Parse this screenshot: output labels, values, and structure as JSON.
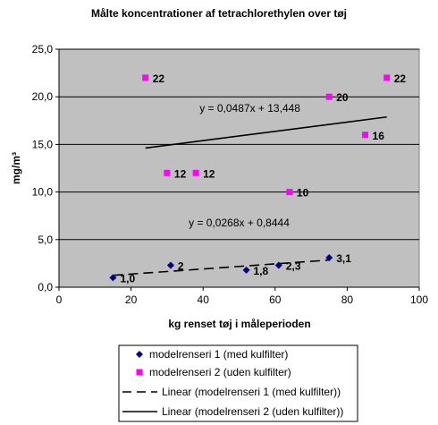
{
  "chart_data": {
    "type": "scatter",
    "title": "Målte koncentrationer af tetrachlorethylen over tøj",
    "xlabel": "kg renset tøj i måleperioden",
    "ylabel": "mg/m³",
    "xlim": [
      0,
      100
    ],
    "ylim": [
      0,
      25
    ],
    "x_ticks": [
      "0",
      "20",
      "40",
      "60",
      "80",
      "100"
    ],
    "y_ticks": [
      "0,0",
      "5,0",
      "10,0",
      "15,0",
      "20,0",
      "25,0"
    ],
    "grid": "horizontal",
    "background_color": "#c0c0c0",
    "series": [
      {
        "name": "modelrenseri 1 (med kulfilter)",
        "marker": "diamond",
        "color": "#000080",
        "points": [
          {
            "x": 15,
            "y": 1.0,
            "label": "1,0"
          },
          {
            "x": 31,
            "y": 2.3,
            "label": "2"
          },
          {
            "x": 52,
            "y": 1.8,
            "label": "1,8"
          },
          {
            "x": 61,
            "y": 2.3,
            "label": "2,3"
          },
          {
            "x": 75,
            "y": 3.1,
            "label": "3,1"
          }
        ]
      },
      {
        "name": "modelrenseri 2 (uden kulfilter)",
        "marker": "square",
        "color": "#ff00ff",
        "points": [
          {
            "x": 24,
            "y": 22,
            "label": "22"
          },
          {
            "x": 30,
            "y": 12,
            "label": "12"
          },
          {
            "x": 38,
            "y": 12,
            "label": "12"
          },
          {
            "x": 64,
            "y": 10,
            "label": "10"
          },
          {
            "x": 75,
            "y": 20,
            "label": "20"
          },
          {
            "x": 85,
            "y": 16,
            "label": "16"
          },
          {
            "x": 91,
            "y": 22,
            "label": "22"
          }
        ]
      }
    ],
    "trendlines": [
      {
        "name": "Linear (modelrenseri 1 (med kulfilter))",
        "style": "dashed",
        "slope": 0.0268,
        "intercept": 0.8444,
        "x_range": [
          15,
          75
        ],
        "equation": "y = 0,0268x + 0,8444",
        "equation_at": {
          "x": 50,
          "y": 6.4
        }
      },
      {
        "name": "Linear (modelrenseri 2 (uden kulfilter))",
        "style": "solid",
        "slope": 0.0487,
        "intercept": 13.448,
        "x_range": [
          24,
          91
        ],
        "equation": "y = 0,0487x + 13,448",
        "equation_at": {
          "x": 53,
          "y": 18.4
        }
      }
    ],
    "legend": {
      "position": "bottom",
      "entries": [
        "modelrenseri 1 (med kulfilter)",
        "modelrenseri 2 (uden kulfilter)",
        "Linear (modelrenseri 1 (med kulfilter))",
        "Linear (modelrenseri 2 (uden kulfilter))"
      ]
    }
  }
}
